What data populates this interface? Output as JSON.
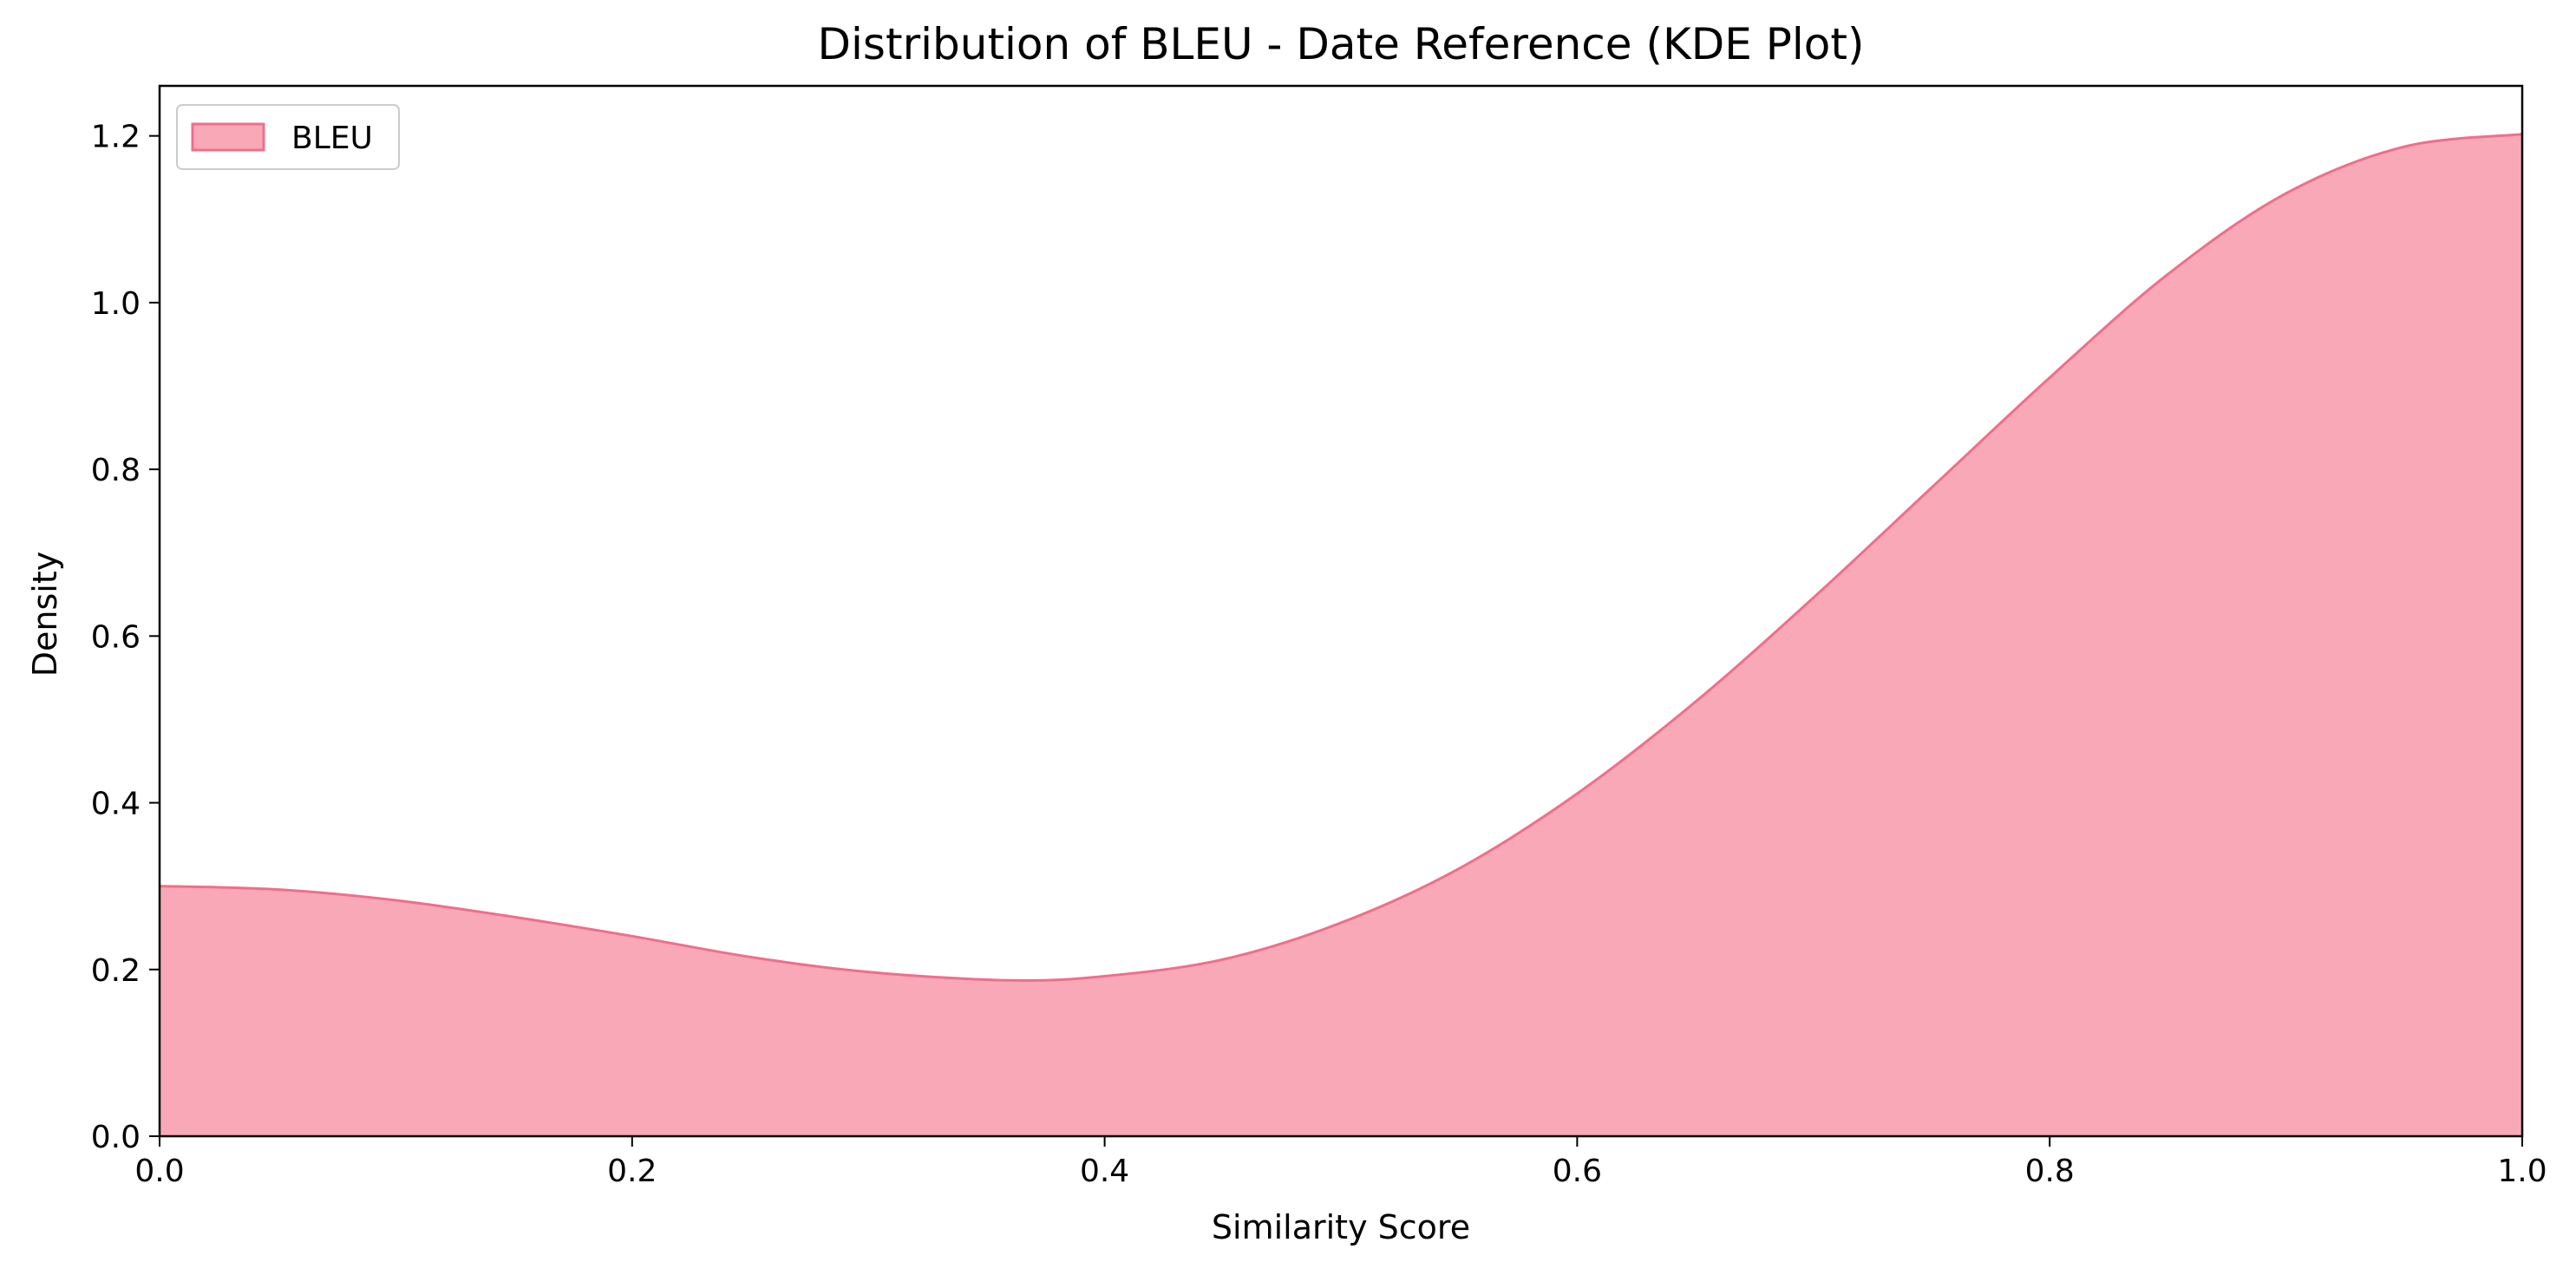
{
  "chart_data": {
    "type": "area",
    "title": "Distribution of BLEU - Date Reference (KDE Plot)",
    "xlabel": "Similarity Score",
    "ylabel": "Density",
    "xlim": [
      0.0,
      1.0
    ],
    "ylim": [
      0.0,
      1.26
    ],
    "xticks": [
      0.0,
      0.2,
      0.4,
      0.6,
      0.8,
      1.0
    ],
    "xtick_labels": [
      "0.0",
      "0.2",
      "0.4",
      "0.6",
      "0.8",
      "1.0"
    ],
    "yticks": [
      0.0,
      0.2,
      0.4,
      0.6,
      0.8,
      1.0,
      1.2
    ],
    "ytick_labels": [
      "0.0",
      "0.2",
      "0.4",
      "0.6",
      "0.8",
      "1.0",
      "1.2"
    ],
    "grid": false,
    "legend_position": "top-left",
    "series": [
      {
        "name": "BLEU",
        "fill_color": "#f8a8b6",
        "line_color": "#ef6f8a",
        "x": [
          0.0,
          0.05,
          0.1,
          0.15,
          0.2,
          0.25,
          0.3,
          0.36,
          0.4,
          0.45,
          0.5,
          0.55,
          0.6,
          0.65,
          0.7,
          0.75,
          0.8,
          0.85,
          0.9,
          0.95,
          1.0
        ],
        "y": [
          0.3,
          0.296,
          0.283,
          0.263,
          0.24,
          0.215,
          0.197,
          0.187,
          0.192,
          0.212,
          0.256,
          0.321,
          0.411,
          0.521,
          0.646,
          0.778,
          0.91,
          1.034,
          1.131,
          1.187,
          1.202
        ]
      }
    ]
  }
}
